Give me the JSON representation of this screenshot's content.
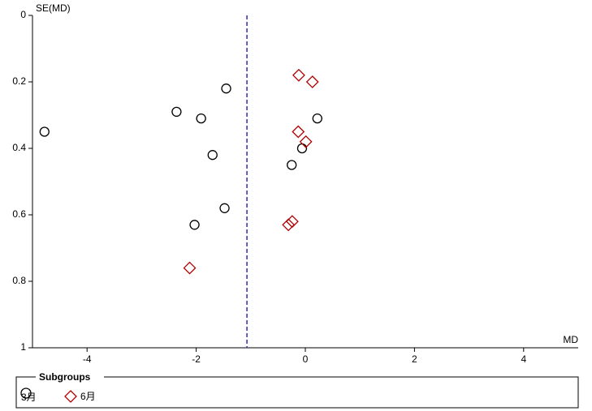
{
  "chart_data": {
    "type": "scatter",
    "x_label": "MD",
    "y_label": "SE(MD)",
    "xlim": [
      -5,
      5
    ],
    "ylim": [
      1,
      0
    ],
    "xticks": [
      -4,
      -2,
      0,
      2,
      4
    ],
    "yticks": [
      0,
      0.2,
      0.4,
      0.6,
      0.8,
      1
    ],
    "reference_line": -1.07,
    "reference_color": "#2b2bb0",
    "legend_title": "Subgroups",
    "series": [
      {
        "name": "3月",
        "color": "#000000",
        "marker": "circle",
        "x": [
          -1.45,
          -2.36,
          -1.91,
          -4.78,
          0.22,
          -1.7,
          -0.06,
          -0.25,
          -1.48,
          -2.03
        ],
        "values": [
          0.22,
          0.29,
          0.31,
          0.35,
          0.31,
          0.42,
          0.4,
          0.45,
          0.58,
          0.63
        ]
      },
      {
        "name": "6月",
        "color": "#b00000",
        "marker": "diamond",
        "x": [
          -0.12,
          0.13,
          -0.13,
          0.01,
          -0.24,
          -0.31,
          -2.12
        ],
        "values": [
          0.18,
          0.2,
          0.35,
          0.38,
          0.62,
          0.63,
          0.76
        ]
      }
    ]
  }
}
